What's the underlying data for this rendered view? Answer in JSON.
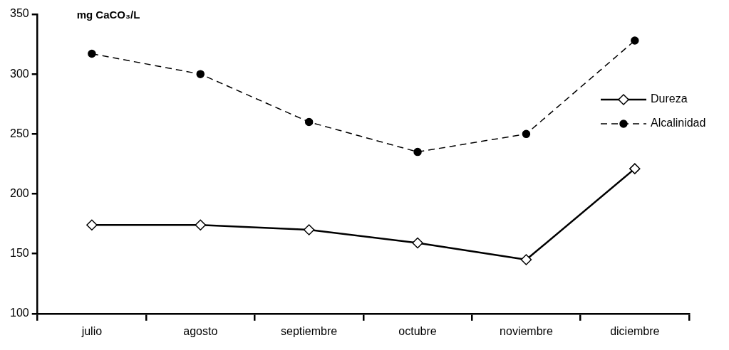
{
  "chart_data": {
    "type": "line",
    "ylabel": "mg CaCO₃/L",
    "categories": [
      "julio",
      "agosto",
      "septiembre",
      "octubre",
      "noviembre",
      "diciembre"
    ],
    "series": [
      {
        "name": "Dureza",
        "color": "#000000",
        "marker": "diamond",
        "line_style": "solid",
        "values": [
          174,
          174,
          170,
          159,
          145,
          221
        ]
      },
      {
        "name": "Alcalinidad",
        "color": "#000000",
        "marker": "circle",
        "line_style": "dashed",
        "values": [
          317,
          300,
          260,
          235,
          250,
          328
        ]
      }
    ],
    "ylim": [
      100,
      350
    ],
    "yticks": [
      100,
      150,
      200,
      250,
      300,
      350
    ],
    "grid": false,
    "legend": "right"
  }
}
